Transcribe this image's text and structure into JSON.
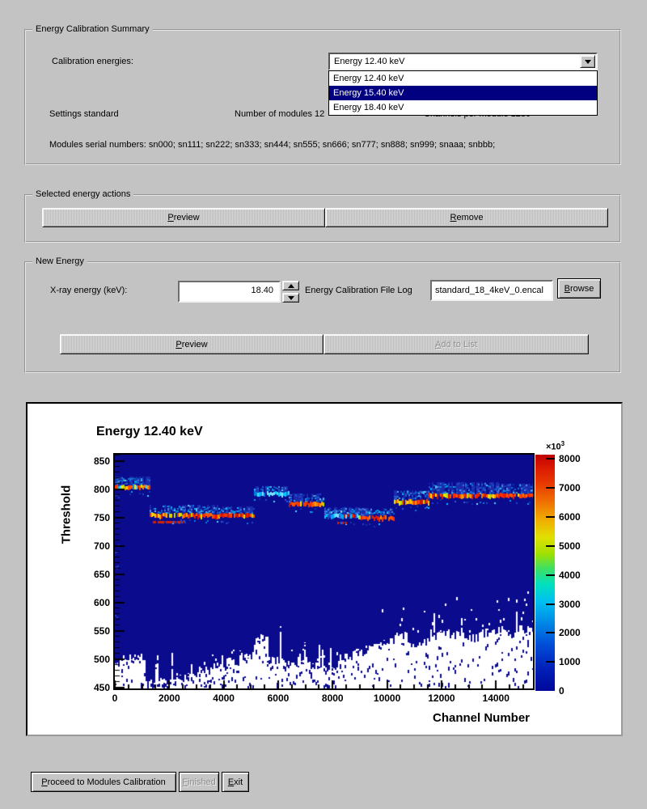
{
  "window": {
    "bg": "#c3c3c3",
    "highlight": "#000080"
  },
  "summary_group": {
    "title": "Energy Calibration Summary",
    "calibration_energies_label": "Calibration energies:",
    "combo": {
      "value": "Energy 12.40 keV"
    },
    "dropdown": {
      "options": [
        "Energy 12.40 keV",
        "Energy 15.40 keV",
        "Energy 18.40 keV"
      ],
      "selected_index": 1,
      "highlight_color": "#000080"
    },
    "settings_label": "Settings standard",
    "modules_label": "Number of modules 12",
    "channels_label": "Channels per module 1280",
    "serials_label": "Modules serial numbers: sn000; sn111; sn222; sn333; sn444; sn555; sn666; sn777; sn888; sn999; snaaa; snbbb;"
  },
  "actions_group": {
    "title": "Selected energy actions",
    "preview": {
      "label": "Preview",
      "key": "P"
    },
    "remove": {
      "label": "Remove",
      "key": "R"
    }
  },
  "new_energy_group": {
    "title": "New Energy",
    "xray_label": "X-ray energy (keV):",
    "energy_value": "18.40",
    "file_label": "Energy Calibration File Log",
    "file_value": "standard_18_4keV_0.encal",
    "browse": {
      "label": "Browse",
      "key": "B"
    },
    "preview": {
      "label": "Preview",
      "key": "P"
    },
    "add": {
      "label": "Add to List",
      "key": "A",
      "disabled": true
    }
  },
  "footer": {
    "proceed": {
      "label": "Proceed to Modules Calibration",
      "key": "P"
    },
    "finished": {
      "label": "Finished",
      "key": "F",
      "disabled": true
    },
    "exit": {
      "label": "Exit",
      "key": "E"
    }
  },
  "chart_data": {
    "type": "heatmap",
    "title": "Energy 12.40 keV",
    "xlabel": "Channel Number",
    "ylabel": "Threshold",
    "x_range": [
      0,
      15360
    ],
    "y_range": [
      449,
      861
    ],
    "x_ticks": [
      0,
      2000,
      4000,
      6000,
      8000,
      10000,
      12000,
      14000
    ],
    "x_minor_step": 500,
    "y_ticks": [
      450,
      500,
      550,
      600,
      650,
      700,
      750,
      800,
      850
    ],
    "y_minor_step": 10,
    "background_color": "#0b0b8e",
    "modules": [
      {
        "ch": [
          0,
          1280
        ],
        "core": 803,
        "style": "mixed",
        "halo": [
          807,
          822
        ]
      },
      {
        "ch": [
          1280,
          2560
        ],
        "core": 753,
        "style": "yellow",
        "halo": [
          758,
          772
        ],
        "sub": {
          "thr": 742,
          "t0": 0.0,
          "t1": 1.0
        }
      },
      {
        "ch": [
          2560,
          3840
        ],
        "core": 753,
        "style": "red",
        "halo": [
          758,
          772
        ]
      },
      {
        "ch": [
          3840,
          5120
        ],
        "core": 753,
        "style": "red",
        "halo": [
          758,
          770
        ]
      },
      {
        "ch": [
          5120,
          6400
        ],
        "core": 791,
        "style": "cyan",
        "halo": [
          794,
          806
        ]
      },
      {
        "ch": [
          6400,
          7680
        ],
        "core": 773,
        "style": "orange",
        "halo": [
          778,
          793
        ]
      },
      {
        "ch": [
          7680,
          8960
        ],
        "core": 752,
        "style": "cyanred",
        "halo": [
          757,
          768
        ],
        "sub": {
          "thr": 741,
          "t0": 0.35,
          "t1": 0.62
        }
      },
      {
        "ch": [
          8960,
          10240
        ],
        "core": 749,
        "style": "red",
        "halo": [
          755,
          767
        ]
      },
      {
        "ch": [
          10240,
          11520
        ],
        "core": 777,
        "style": "yellow",
        "halo": [
          782,
          798
        ]
      },
      {
        "ch": [
          11520,
          12800
        ],
        "core": 788,
        "style": "redmix",
        "halo": [
          793,
          812
        ]
      },
      {
        "ch": [
          12800,
          14080
        ],
        "core": 788,
        "style": "red",
        "halo": [
          793,
          812
        ]
      },
      {
        "ch": [
          14080,
          15360
        ],
        "core": 788,
        "style": "red",
        "halo": [
          793,
          810
        ]
      }
    ],
    "noise_profile": [
      500,
      503,
      458,
      460,
      466,
      472,
      480,
      488,
      496,
      505,
      538,
      500,
      492,
      503,
      488,
      483,
      503,
      512,
      522,
      532,
      543,
      528,
      533,
      548,
      543,
      538,
      548,
      552,
      544,
      553
    ],
    "palettes": {
      "cyan": [
        "#00c8ff",
        "#00a2f2",
        "#45dcff",
        "#0080dc",
        "#7ddfff"
      ],
      "blue": [
        "#2244cc",
        "#1133aa",
        "#3355dd"
      ],
      "red": [
        "#e52000",
        "#ff2d00",
        "#cc1400",
        "#ff4e00"
      ],
      "orange": [
        "#ff7300",
        "#ff5400",
        "#e84000",
        "#ffa000"
      ],
      "yellow": [
        "#ffe800",
        "#e3e800",
        "#b4e000",
        "#ffc400",
        "#ff9000"
      ]
    },
    "colorbar": {
      "min": 0,
      "max": 8000,
      "ticks": [
        0,
        1000,
        2000,
        3000,
        4000,
        5000,
        6000,
        7000,
        8000
      ],
      "exponent_base": "×10",
      "exponent_power": "3",
      "stops": [
        {
          "pos": 0.0,
          "color": "#000899"
        },
        {
          "pos": 0.1,
          "color": "#0022bb"
        },
        {
          "pos": 0.2,
          "color": "#0050d8"
        },
        {
          "pos": 0.3,
          "color": "#0090e8"
        },
        {
          "pos": 0.38,
          "color": "#00c0f0"
        },
        {
          "pos": 0.45,
          "color": "#00e0c0"
        },
        {
          "pos": 0.52,
          "color": "#40e060"
        },
        {
          "pos": 0.58,
          "color": "#a0e000"
        },
        {
          "pos": 0.65,
          "color": "#e0e000"
        },
        {
          "pos": 0.72,
          "color": "#f0b000"
        },
        {
          "pos": 0.8,
          "color": "#f07000"
        },
        {
          "pos": 0.88,
          "color": "#e83800"
        },
        {
          "pos": 0.95,
          "color": "#d81800"
        },
        {
          "pos": 1.0,
          "color": "#c00000"
        }
      ]
    }
  }
}
